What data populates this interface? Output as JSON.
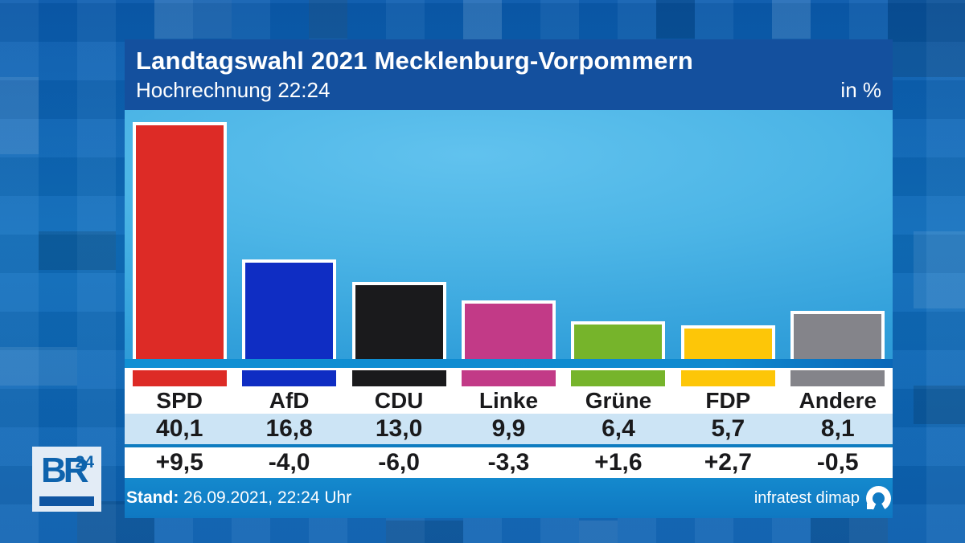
{
  "header": {
    "title": "Landtagswahl 2021 Mecklenburg-Vorpommern",
    "subtitle": "Hochrechnung 22:24",
    "unit_label": "in %"
  },
  "chart_data": {
    "type": "bar",
    "title": "Landtagswahl 2021 Mecklenburg-Vorpommern",
    "subtitle": "Hochrechnung 22:24",
    "unit": "in %",
    "categories": [
      "SPD",
      "AfD",
      "CDU",
      "Linke",
      "Grüne",
      "FDP",
      "Andere"
    ],
    "values": [
      40.1,
      16.8,
      13.0,
      9.9,
      6.4,
      5.7,
      8.1
    ],
    "value_labels": [
      "40,1",
      "16,8",
      "13,0",
      "9,9",
      "6,4",
      "5,7",
      "8,1"
    ],
    "change_labels": [
      "+9,5",
      "-4,0",
      "-6,0",
      "-3,3",
      "+1,6",
      "+2,7",
      "-0,5"
    ],
    "bar_colors": [
      "#dd2b26",
      "#0f2dc3",
      "#1a1a1c",
      "#c23a87",
      "#76b42b",
      "#fdc608",
      "#84848a"
    ],
    "ylim": [
      0,
      42
    ],
    "grid": false,
    "legend": false,
    "source": "infratest dimap",
    "as_of": "26.09.2021, 22:24 Uhr"
  },
  "footer": {
    "stand_label": "Stand:"
  },
  "branding": {
    "channel": "BR",
    "channel_sup": "24"
  }
}
